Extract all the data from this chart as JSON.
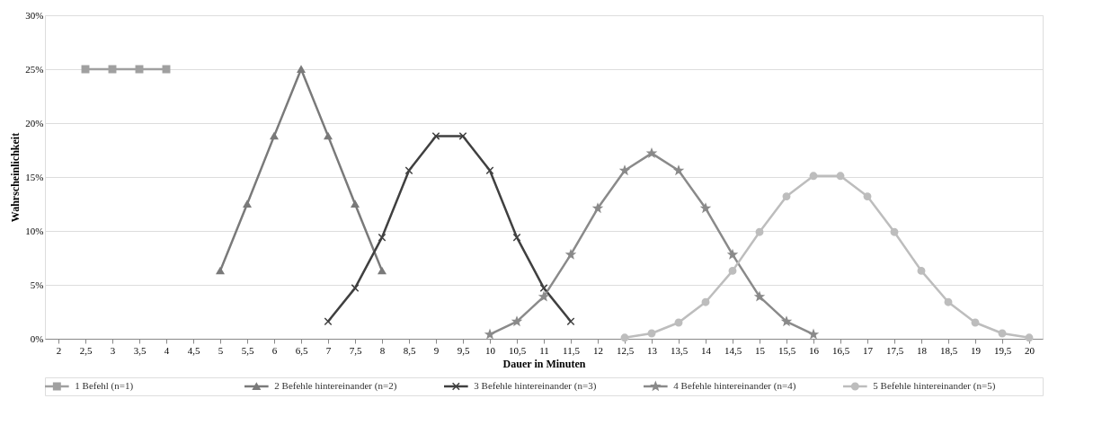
{
  "chart_data": {
    "type": "line",
    "xlabel": "Dauer in Minuten",
    "ylabel": "Wahrscheinlichkeit",
    "categories": [
      "2",
      "2,5",
      "3",
      "3,5",
      "4",
      "4,5",
      "5",
      "5,5",
      "6",
      "6,5",
      "7",
      "7,5",
      "8",
      "8,5",
      "9",
      "9,5",
      "10",
      "10,5",
      "11",
      "11,5",
      "12",
      "12,5",
      "13",
      "13,5",
      "14",
      "14,5",
      "15",
      "15,5",
      "16",
      "16,5",
      "17",
      "17,5",
      "18",
      "18,5",
      "19",
      "19,5",
      "20"
    ],
    "ylim": [
      0,
      30
    ],
    "yticks": [
      {
        "value": 0,
        "label": "0%"
      },
      {
        "value": 5,
        "label": "5%"
      },
      {
        "value": 10,
        "label": "10%"
      },
      {
        "value": 15,
        "label": "15%"
      },
      {
        "value": 20,
        "label": "20%"
      },
      {
        "value": 25,
        "label": "25%"
      },
      {
        "value": 30,
        "label": "30%"
      }
    ],
    "grid": "y",
    "legend": "bottom",
    "line_style": "solid",
    "series": [
      {
        "name": "1 Befehl (n=1)",
        "color": "#a0a0a0",
        "marker": "square",
        "values": [
          null,
          25,
          25,
          25,
          25,
          null,
          null,
          null,
          null,
          null,
          null,
          null,
          null,
          null,
          null,
          null,
          null,
          null,
          null,
          null,
          null,
          null,
          null,
          null,
          null,
          null,
          null,
          null,
          null,
          null,
          null,
          null,
          null,
          null,
          null,
          null,
          null
        ]
      },
      {
        "name": "2 Befehle hintereinander (n=2)",
        "color": "#7a7a7a",
        "marker": "triangle",
        "values": [
          null,
          null,
          null,
          null,
          null,
          null,
          6.3,
          12.5,
          18.8,
          25,
          18.8,
          12.5,
          6.3,
          null,
          null,
          null,
          null,
          null,
          null,
          null,
          null,
          null,
          null,
          null,
          null,
          null,
          null,
          null,
          null,
          null,
          null,
          null,
          null,
          null,
          null,
          null,
          null
        ]
      },
      {
        "name": "3 Befehle hintereinander (n=3)",
        "color": "#404040",
        "marker": "cross",
        "values": [
          null,
          null,
          null,
          null,
          null,
          null,
          null,
          null,
          null,
          null,
          1.6,
          4.7,
          9.4,
          15.6,
          18.8,
          18.8,
          15.6,
          9.4,
          4.7,
          1.6,
          null,
          null,
          null,
          null,
          null,
          null,
          null,
          null,
          null,
          null,
          null,
          null,
          null,
          null,
          null,
          null,
          null
        ]
      },
      {
        "name": "4 Befehle hintereinander (n=4)",
        "color": "#8a8a8a",
        "marker": "star",
        "values": [
          null,
          null,
          null,
          null,
          null,
          null,
          null,
          null,
          null,
          null,
          null,
          null,
          null,
          null,
          null,
          null,
          0.4,
          1.6,
          3.9,
          7.8,
          12.1,
          15.6,
          17.2,
          15.6,
          12.1,
          7.8,
          3.9,
          1.6,
          0.4,
          null,
          null,
          null,
          null,
          null,
          null,
          null,
          null
        ]
      },
      {
        "name": "5 Befehle hintereinander (n=5)",
        "color": "#bdbdbd",
        "marker": "circle",
        "values": [
          null,
          null,
          null,
          null,
          null,
          null,
          null,
          null,
          null,
          null,
          null,
          null,
          null,
          null,
          null,
          null,
          null,
          null,
          null,
          null,
          null,
          0.1,
          0.5,
          1.5,
          3.4,
          6.3,
          9.9,
          13.2,
          15.1,
          15.1,
          13.2,
          9.9,
          6.3,
          3.4,
          1.5,
          0.5,
          0.1
        ]
      }
    ]
  }
}
